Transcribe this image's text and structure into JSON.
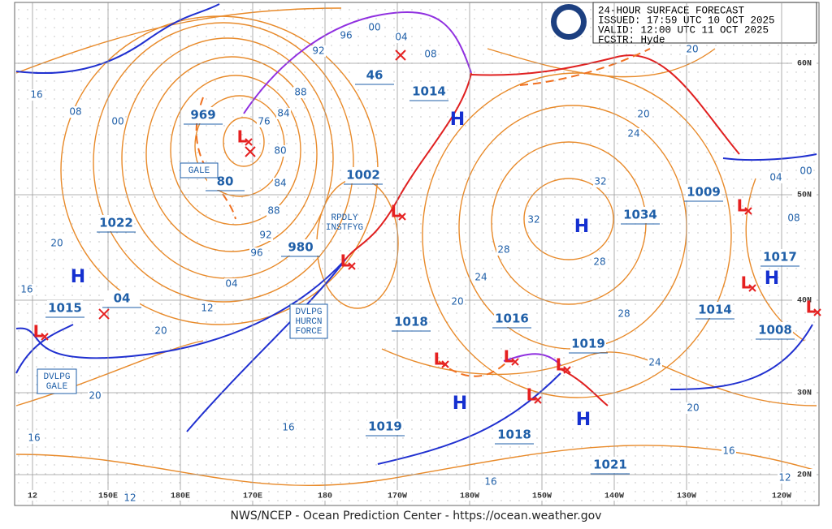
{
  "header": {
    "title": "24-HOUR SURFACE FORECAST",
    "issued": "ISSUED: 17:59 UTC 10 OCT 2025",
    "valid": "VALID:  12:00 UTC 11 OCT 2025",
    "forecaster": "FCSTR:  Hyde"
  },
  "footer": "NWS/NCEP - Ocean Prediction Center - https://ocean.weather.gov",
  "longitude_labels": [
    "12",
    "150E",
    "180E",
    "170E",
    "180",
    "170W",
    "180W",
    "150W",
    "140W",
    "130W",
    "120W"
  ],
  "latitude_labels": [
    "60N",
    "50N",
    "40N",
    "30N",
    "20N"
  ],
  "pressure_centers": [
    "969",
    "80",
    "1002",
    "980",
    "1022",
    "1015",
    "04",
    "46",
    "1014",
    "1034",
    "1009",
    "1017",
    "1014",
    "1008",
    "1018",
    "1016",
    "1019",
    "1019",
    "1018",
    "1021"
  ],
  "isobar_labels": [
    "16",
    "08",
    "00",
    "96",
    "00",
    "04",
    "08",
    "92",
    "88",
    "84",
    "76",
    "80",
    "84",
    "88",
    "92",
    "96",
    "04",
    "12",
    "20",
    "20",
    "16",
    "20",
    "16",
    "12",
    "16",
    "20",
    "24",
    "28",
    "32",
    "32",
    "28",
    "24",
    "20",
    "28",
    "24",
    "20",
    "16",
    "12",
    "16",
    "04",
    "00",
    "08",
    "20"
  ],
  "annotations": [
    "GALE",
    "RPDLY",
    "INSTFYG",
    "DVLPG",
    "HURCN",
    "FORCE",
    "DVLPG",
    "GALE"
  ],
  "highs": [
    "H",
    "H",
    "H",
    "H",
    "H",
    "H"
  ],
  "lows": [
    "L",
    "L",
    "L",
    "L",
    "L",
    "L",
    "L",
    "L",
    "L",
    "L",
    "L"
  ]
}
